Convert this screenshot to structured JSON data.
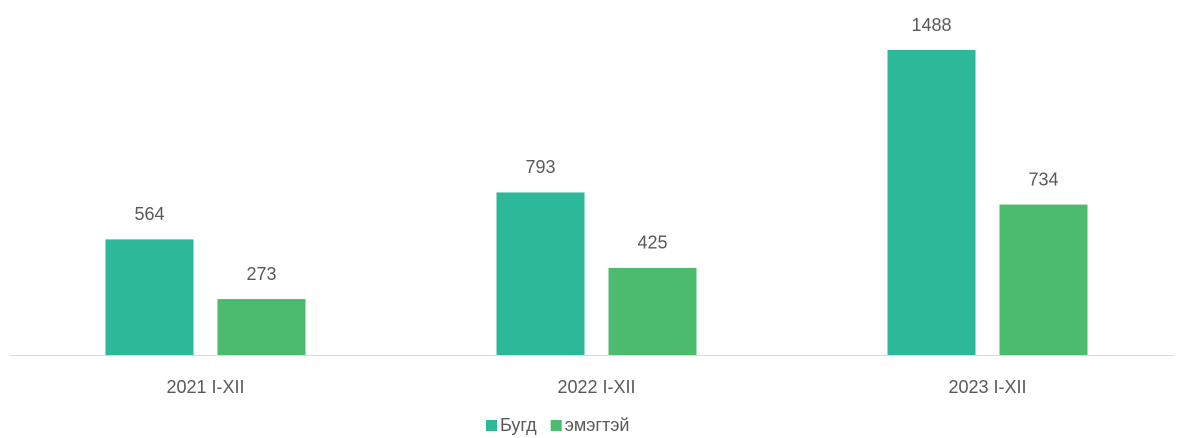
{
  "chart_data": {
    "type": "bar",
    "categories": [
      "2021 I-XII",
      "2022 I-XII",
      "2023 I-XII"
    ],
    "series": [
      {
        "name": "Бугд",
        "color": "#2bb99a",
        "values": [
          564,
          793,
          1488
        ]
      },
      {
        "name": "эмэгтэй",
        "color": "#4dbb6d",
        "values": [
          273,
          425,
          734
        ]
      }
    ],
    "legend": "bottom"
  }
}
